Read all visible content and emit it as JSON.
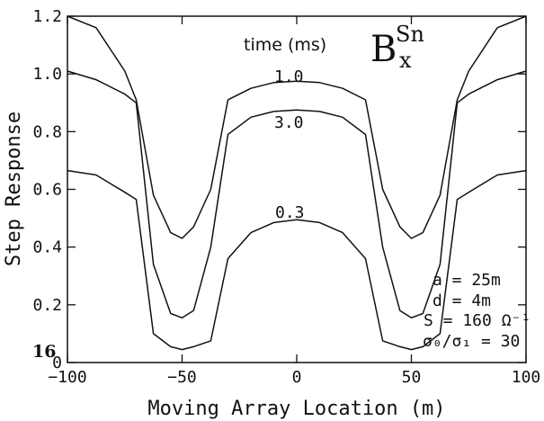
{
  "chart_data": {
    "type": "line",
    "title": "",
    "xlabel": "Moving Array Location (m)",
    "ylabel": "Step Response",
    "xlim": [
      -100,
      100
    ],
    "ylim": [
      0,
      1.2
    ],
    "x_ticks": [
      -100,
      -50,
      0,
      50,
      100
    ],
    "x_tick_labels": [
      "−100",
      "−50",
      "0",
      "50",
      "100"
    ],
    "y_ticks": [
      0,
      0.2,
      0.4,
      0.6,
      0.8,
      1.0,
      1.2
    ],
    "y_tick_labels": [
      "0",
      "0.2",
      "0.4",
      "0.6",
      "0.8",
      "1.0",
      "1.2"
    ],
    "grid": false,
    "legend_title": "time (ms)",
    "field_component": {
      "symbol": "B",
      "superscript": "Sn",
      "subscript": "x"
    },
    "x": [
      -100,
      -87.5,
      -75,
      -70,
      -62.5,
      -55,
      -50,
      -45,
      -37.5,
      -30,
      -20,
      -10,
      0,
      10,
      20,
      30,
      37.5,
      45,
      50,
      55,
      62.5,
      70,
      75,
      87.5,
      100
    ],
    "series": [
      {
        "name": "1.0",
        "values": [
          1.2,
          1.16,
          1.01,
          0.91,
          0.58,
          0.45,
          0.43,
          0.47,
          0.6,
          0.91,
          0.95,
          0.97,
          0.975,
          0.97,
          0.95,
          0.91,
          0.6,
          0.47,
          0.43,
          0.45,
          0.58,
          0.91,
          1.01,
          1.16,
          1.2
        ]
      },
      {
        "name": "3.0",
        "values": [
          1.01,
          0.98,
          0.93,
          0.9,
          0.34,
          0.17,
          0.155,
          0.18,
          0.4,
          0.79,
          0.85,
          0.87,
          0.875,
          0.87,
          0.85,
          0.79,
          0.4,
          0.18,
          0.155,
          0.17,
          0.34,
          0.9,
          0.93,
          0.98,
          1.01
        ]
      },
      {
        "name": "0.3",
        "values": [
          0.665,
          0.65,
          0.59,
          0.565,
          0.1,
          0.055,
          0.045,
          0.055,
          0.075,
          0.36,
          0.45,
          0.485,
          0.495,
          0.485,
          0.45,
          0.36,
          0.075,
          0.055,
          0.045,
          0.055,
          0.1,
          0.565,
          0.59,
          0.65,
          0.665
        ]
      }
    ],
    "parameters": [
      "a = 25m",
      "d = 4m",
      "S = 160 Ω⁻¹",
      "σ₀/σ₁ = 30"
    ],
    "figure_number": "16"
  }
}
